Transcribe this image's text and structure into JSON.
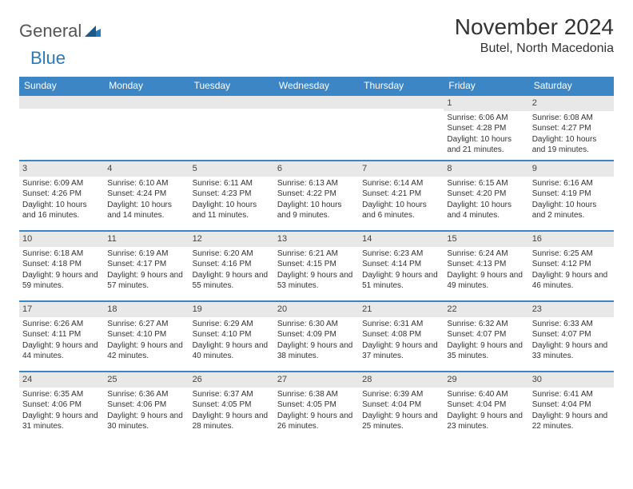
{
  "logo": {
    "part1": "General",
    "part2": "Blue"
  },
  "title": "November 2024",
  "location": "Butel, North Macedonia",
  "colors": {
    "header_bg": "#3d86c6",
    "header_text": "#ffffff",
    "daynum_bg": "#e8e8e8",
    "row_border": "#3d86c6",
    "body_text": "#333333",
    "logo_gray": "#555555",
    "logo_blue": "#2b7ab8",
    "background": "#ffffff"
  },
  "typography": {
    "title_fontsize": 28,
    "location_fontsize": 16,
    "header_fontsize": 12,
    "daynum_fontsize": 11,
    "cell_fontsize": 10
  },
  "day_headers": [
    "Sunday",
    "Monday",
    "Tuesday",
    "Wednesday",
    "Thursday",
    "Friday",
    "Saturday"
  ],
  "weeks": [
    [
      null,
      null,
      null,
      null,
      null,
      {
        "n": "1",
        "sr": "Sunrise: 6:06 AM",
        "ss": "Sunset: 4:28 PM",
        "dl": "Daylight: 10 hours and 21 minutes."
      },
      {
        "n": "2",
        "sr": "Sunrise: 6:08 AM",
        "ss": "Sunset: 4:27 PM",
        "dl": "Daylight: 10 hours and 19 minutes."
      }
    ],
    [
      {
        "n": "3",
        "sr": "Sunrise: 6:09 AM",
        "ss": "Sunset: 4:26 PM",
        "dl": "Daylight: 10 hours and 16 minutes."
      },
      {
        "n": "4",
        "sr": "Sunrise: 6:10 AM",
        "ss": "Sunset: 4:24 PM",
        "dl": "Daylight: 10 hours and 14 minutes."
      },
      {
        "n": "5",
        "sr": "Sunrise: 6:11 AM",
        "ss": "Sunset: 4:23 PM",
        "dl": "Daylight: 10 hours and 11 minutes."
      },
      {
        "n": "6",
        "sr": "Sunrise: 6:13 AM",
        "ss": "Sunset: 4:22 PM",
        "dl": "Daylight: 10 hours and 9 minutes."
      },
      {
        "n": "7",
        "sr": "Sunrise: 6:14 AM",
        "ss": "Sunset: 4:21 PM",
        "dl": "Daylight: 10 hours and 6 minutes."
      },
      {
        "n": "8",
        "sr": "Sunrise: 6:15 AM",
        "ss": "Sunset: 4:20 PM",
        "dl": "Daylight: 10 hours and 4 minutes."
      },
      {
        "n": "9",
        "sr": "Sunrise: 6:16 AM",
        "ss": "Sunset: 4:19 PM",
        "dl": "Daylight: 10 hours and 2 minutes."
      }
    ],
    [
      {
        "n": "10",
        "sr": "Sunrise: 6:18 AM",
        "ss": "Sunset: 4:18 PM",
        "dl": "Daylight: 9 hours and 59 minutes."
      },
      {
        "n": "11",
        "sr": "Sunrise: 6:19 AM",
        "ss": "Sunset: 4:17 PM",
        "dl": "Daylight: 9 hours and 57 minutes."
      },
      {
        "n": "12",
        "sr": "Sunrise: 6:20 AM",
        "ss": "Sunset: 4:16 PM",
        "dl": "Daylight: 9 hours and 55 minutes."
      },
      {
        "n": "13",
        "sr": "Sunrise: 6:21 AM",
        "ss": "Sunset: 4:15 PM",
        "dl": "Daylight: 9 hours and 53 minutes."
      },
      {
        "n": "14",
        "sr": "Sunrise: 6:23 AM",
        "ss": "Sunset: 4:14 PM",
        "dl": "Daylight: 9 hours and 51 minutes."
      },
      {
        "n": "15",
        "sr": "Sunrise: 6:24 AM",
        "ss": "Sunset: 4:13 PM",
        "dl": "Daylight: 9 hours and 49 minutes."
      },
      {
        "n": "16",
        "sr": "Sunrise: 6:25 AM",
        "ss": "Sunset: 4:12 PM",
        "dl": "Daylight: 9 hours and 46 minutes."
      }
    ],
    [
      {
        "n": "17",
        "sr": "Sunrise: 6:26 AM",
        "ss": "Sunset: 4:11 PM",
        "dl": "Daylight: 9 hours and 44 minutes."
      },
      {
        "n": "18",
        "sr": "Sunrise: 6:27 AM",
        "ss": "Sunset: 4:10 PM",
        "dl": "Daylight: 9 hours and 42 minutes."
      },
      {
        "n": "19",
        "sr": "Sunrise: 6:29 AM",
        "ss": "Sunset: 4:10 PM",
        "dl": "Daylight: 9 hours and 40 minutes."
      },
      {
        "n": "20",
        "sr": "Sunrise: 6:30 AM",
        "ss": "Sunset: 4:09 PM",
        "dl": "Daylight: 9 hours and 38 minutes."
      },
      {
        "n": "21",
        "sr": "Sunrise: 6:31 AM",
        "ss": "Sunset: 4:08 PM",
        "dl": "Daylight: 9 hours and 37 minutes."
      },
      {
        "n": "22",
        "sr": "Sunrise: 6:32 AM",
        "ss": "Sunset: 4:07 PM",
        "dl": "Daylight: 9 hours and 35 minutes."
      },
      {
        "n": "23",
        "sr": "Sunrise: 6:33 AM",
        "ss": "Sunset: 4:07 PM",
        "dl": "Daylight: 9 hours and 33 minutes."
      }
    ],
    [
      {
        "n": "24",
        "sr": "Sunrise: 6:35 AM",
        "ss": "Sunset: 4:06 PM",
        "dl": "Daylight: 9 hours and 31 minutes."
      },
      {
        "n": "25",
        "sr": "Sunrise: 6:36 AM",
        "ss": "Sunset: 4:06 PM",
        "dl": "Daylight: 9 hours and 30 minutes."
      },
      {
        "n": "26",
        "sr": "Sunrise: 6:37 AM",
        "ss": "Sunset: 4:05 PM",
        "dl": "Daylight: 9 hours and 28 minutes."
      },
      {
        "n": "27",
        "sr": "Sunrise: 6:38 AM",
        "ss": "Sunset: 4:05 PM",
        "dl": "Daylight: 9 hours and 26 minutes."
      },
      {
        "n": "28",
        "sr": "Sunrise: 6:39 AM",
        "ss": "Sunset: 4:04 PM",
        "dl": "Daylight: 9 hours and 25 minutes."
      },
      {
        "n": "29",
        "sr": "Sunrise: 6:40 AM",
        "ss": "Sunset: 4:04 PM",
        "dl": "Daylight: 9 hours and 23 minutes."
      },
      {
        "n": "30",
        "sr": "Sunrise: 6:41 AM",
        "ss": "Sunset: 4:04 PM",
        "dl": "Daylight: 9 hours and 22 minutes."
      }
    ]
  ]
}
